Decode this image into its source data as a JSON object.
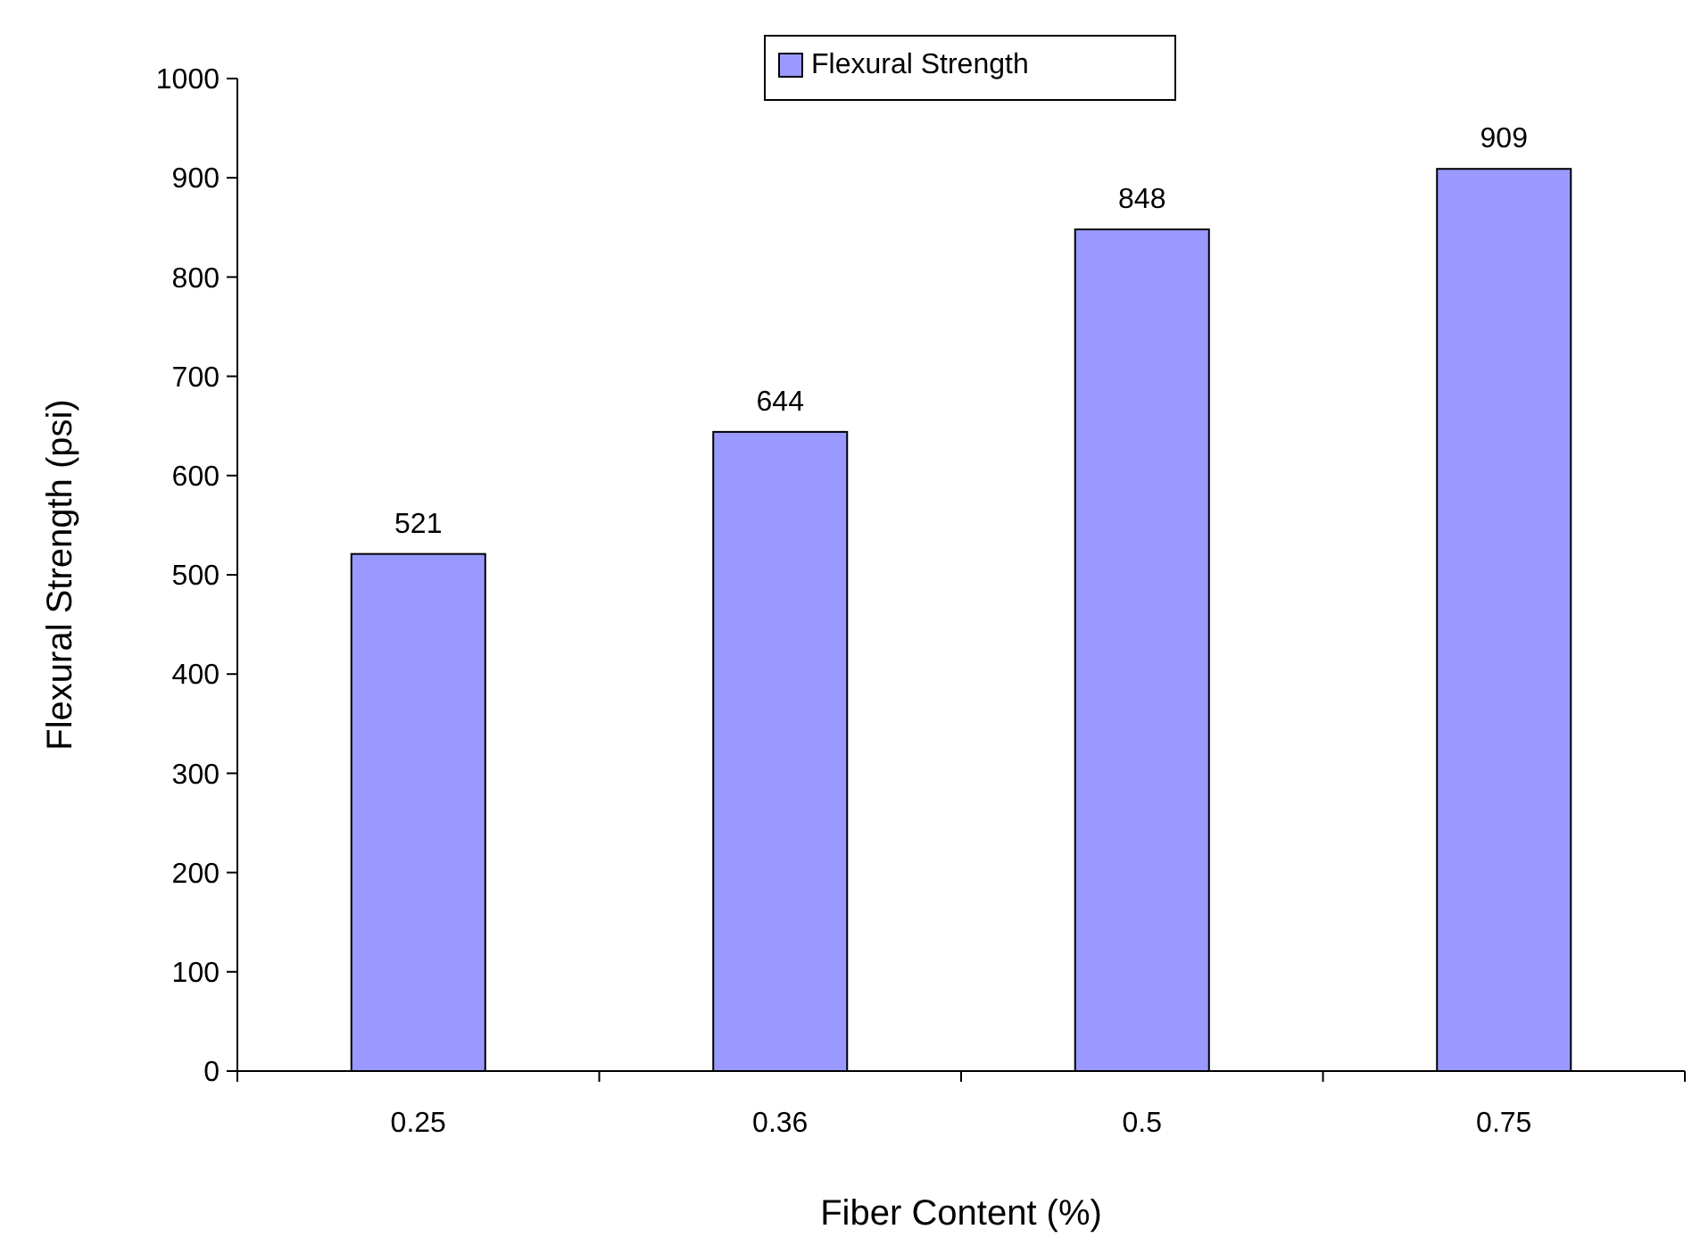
{
  "chart_data": {
    "type": "bar",
    "xlabel": "Fiber Content (%)",
    "ylabel": "Flexural Strength (psi)",
    "categories": [
      "0.25",
      "0.36",
      "0.5",
      "0.75"
    ],
    "series": [
      {
        "name": "Flexural Strength",
        "color": "#9999ff",
        "values": [
          521,
          644,
          848,
          909
        ]
      }
    ],
    "ylim": [
      0,
      1000
    ],
    "yticks": [
      0,
      100,
      200,
      300,
      400,
      500,
      600,
      700,
      800,
      900,
      1000
    ],
    "data_labels": true,
    "legend": "top",
    "grid": false
  }
}
